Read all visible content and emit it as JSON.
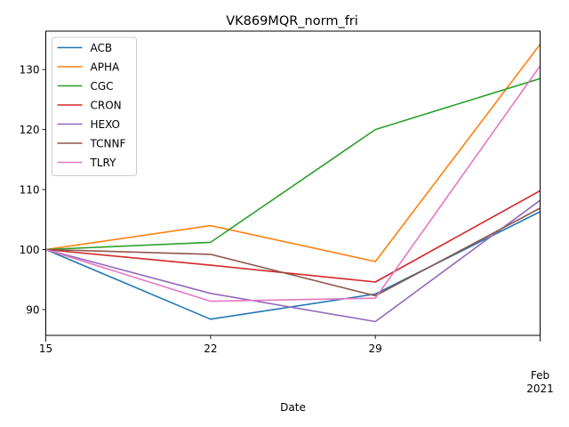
{
  "chart_data": {
    "type": "line",
    "title": "VK869MQR_norm_fri",
    "xlabel": "Date",
    "ylabel": "",
    "x": [
      "2021-01-15",
      "2021-01-22",
      "2021-01-29",
      "2021-02-05"
    ],
    "x_tick_labels": [
      "15",
      "22",
      "29",
      "Feb\n2021"
    ],
    "ylim": [
      85.7,
      136.4
    ],
    "y_ticks": [
      90,
      100,
      110,
      120,
      130
    ],
    "grid": false,
    "legend": "top-left",
    "series": [
      {
        "name": "ACB",
        "color": "#1f77b4",
        "values": [
          100,
          88.4,
          92.6,
          106.3
        ]
      },
      {
        "name": "APHA",
        "color": "#ff7f0e",
        "values": [
          100,
          104.0,
          98.0,
          134.2
        ]
      },
      {
        "name": "CGC",
        "color": "#2ca02c",
        "values": [
          100,
          101.2,
          120.0,
          128.5
        ]
      },
      {
        "name": "CRON",
        "color": "#d62728",
        "values": [
          100,
          97.4,
          94.6,
          109.8
        ]
      },
      {
        "name": "HEXO",
        "color": "#9467bd",
        "values": [
          100,
          92.7,
          88.0,
          108.2
        ]
      },
      {
        "name": "TCNNF",
        "color": "#8c564b",
        "values": [
          100,
          99.2,
          92.3,
          106.9
        ]
      },
      {
        "name": "TLRY",
        "color": "#e377c2",
        "values": [
          100,
          91.4,
          91.9,
          130.6
        ]
      }
    ]
  }
}
